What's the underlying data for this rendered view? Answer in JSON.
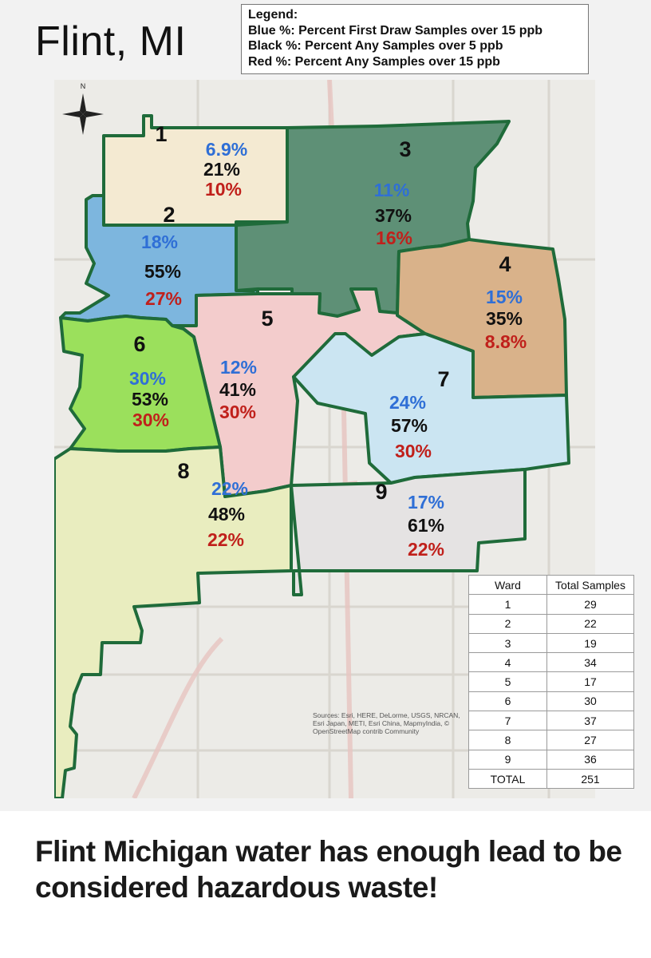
{
  "title": "Flint, MI",
  "legend": {
    "heading": "Legend:",
    "blue": "Blue %: Percent First Draw Samples over 15 ppb",
    "black": "Black %: Percent Any Samples over 5 ppb",
    "red": "Red %: Percent Any Samples over 15 ppb"
  },
  "compass_label": "N",
  "colors": {
    "blue_text": "#2f6fd6",
    "black_text": "#111111",
    "red_text": "#c0201b",
    "ward_border": "#1f6b3a"
  },
  "wards": [
    {
      "number": "1",
      "blue": "6.9%",
      "black": "21%",
      "red": "10%",
      "fill": "#f4ead2"
    },
    {
      "number": "2",
      "blue": "18%",
      "black": "55%",
      "red": "27%",
      "fill": "#7db6de"
    },
    {
      "number": "3",
      "blue": "11%",
      "black": "37%",
      "red": "16%",
      "fill": "#5e9076"
    },
    {
      "number": "4",
      "blue": "15%",
      "black": "35%",
      "red": "8.8%",
      "fill": "#d9b28a"
    },
    {
      "number": "5",
      "blue": "12%",
      "black": "41%",
      "red": "30%",
      "fill": "#f3cccc"
    },
    {
      "number": "6",
      "blue": "30%",
      "black": "53%",
      "red": "30%",
      "fill": "#9be05c"
    },
    {
      "number": "7",
      "blue": "24%",
      "black": "57%",
      "red": "30%",
      "fill": "#cbe5f2"
    },
    {
      "number": "8",
      "blue": "22%",
      "black": "48%",
      "red": "22%",
      "fill": "#e9edbf"
    },
    {
      "number": "9",
      "blue": "17%",
      "black": "61%",
      "red": "22%",
      "fill": "#e5e3e3"
    }
  ],
  "sources": "Sources: Esri, HERE, DeLorme, USGS, NRCAN, Esri Japan, METI, Esri China, MapmyIndia, © OpenStreetMap contrib Community",
  "table": {
    "headers": [
      "Ward",
      "Total Samples"
    ],
    "rows": [
      [
        "1",
        "29"
      ],
      [
        "2",
        "22"
      ],
      [
        "3",
        "19"
      ],
      [
        "4",
        "34"
      ],
      [
        "5",
        "17"
      ],
      [
        "6",
        "30"
      ],
      [
        "7",
        "37"
      ],
      [
        "8",
        "27"
      ],
      [
        "9",
        "36"
      ],
      [
        "TOTAL",
        "251"
      ]
    ]
  },
  "caption": "Flint Michigan water has enough lead to be considered hazardous waste!"
}
